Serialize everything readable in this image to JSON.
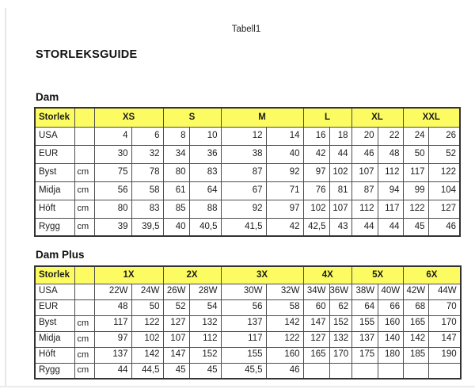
{
  "page": {
    "sheet_label": "Tabell1",
    "title": "STORLEKSGUIDE"
  },
  "colors": {
    "header_fill": "#fcfc62",
    "grid_border": "#4d4d4d",
    "text": "#1c1c1c"
  },
  "tables": [
    {
      "name": "Dam",
      "header_label": "Storlek",
      "sizes": [
        "XS",
        "S",
        "M",
        "L",
        "XL",
        "XXL"
      ],
      "rows": [
        {
          "label": "USA",
          "unit": "",
          "values": [
            "4",
            "6",
            "8",
            "10",
            "12",
            "14",
            "16",
            "18",
            "20",
            "22",
            "24",
            "26"
          ]
        },
        {
          "label": "EUR",
          "unit": "",
          "values": [
            "30",
            "32",
            "34",
            "36",
            "38",
            "40",
            "42",
            "44",
            "46",
            "48",
            "50",
            "52"
          ]
        },
        {
          "label": "Byst",
          "unit": "cm",
          "values": [
            "75",
            "78",
            "80",
            "83",
            "87",
            "92",
            "97",
            "102",
            "107",
            "112",
            "117",
            "122"
          ]
        },
        {
          "label": "Midja",
          "unit": "cm",
          "values": [
            "56",
            "58",
            "61",
            "64",
            "67",
            "71",
            "76",
            "81",
            "87",
            "94",
            "99",
            "104"
          ]
        },
        {
          "label": "Höft",
          "unit": "cm",
          "values": [
            "80",
            "83",
            "85",
            "88",
            "92",
            "97",
            "102",
            "107",
            "112",
            "117",
            "122",
            "127"
          ]
        },
        {
          "label": "Rygg",
          "unit": "cm",
          "values": [
            "39",
            "39,5",
            "40",
            "40,5",
            "41,5",
            "42",
            "42,5",
            "43",
            "44",
            "44",
            "45",
            "46"
          ]
        }
      ]
    },
    {
      "name": "Dam Plus",
      "header_label": "Storlek",
      "sizes": [
        "1X",
        "2X",
        "3X",
        "4X",
        "5X",
        "6X"
      ],
      "rows": [
        {
          "label": "USA",
          "unit": "",
          "values": [
            "22W",
            "24W",
            "26W",
            "28W",
            "30W",
            "32W",
            "34W",
            "36W",
            "38W",
            "40W",
            "42W",
            "44W"
          ]
        },
        {
          "label": "EUR",
          "unit": "",
          "values": [
            "48",
            "50",
            "52",
            "54",
            "56",
            "58",
            "60",
            "62",
            "64",
            "66",
            "68",
            "70"
          ]
        },
        {
          "label": "Byst",
          "unit": "cm",
          "values": [
            "117",
            "122",
            "127",
            "132",
            "137",
            "142",
            "147",
            "152",
            "155",
            "160",
            "165",
            "170"
          ]
        },
        {
          "label": "Midja",
          "unit": "cm",
          "values": [
            "97",
            "102",
            "107",
            "112",
            "117",
            "122",
            "127",
            "132",
            "137",
            "140",
            "142",
            "147"
          ]
        },
        {
          "label": "Höft",
          "unit": "cm",
          "values": [
            "137",
            "142",
            "147",
            "152",
            "155",
            "160",
            "165",
            "170",
            "175",
            "180",
            "185",
            "190"
          ]
        },
        {
          "label": "Rygg",
          "unit": "cm",
          "values": [
            "44",
            "44,5",
            "45",
            "45",
            "45,5",
            "46",
            "",
            "",
            "",
            "",
            "",
            ""
          ]
        }
      ]
    }
  ]
}
